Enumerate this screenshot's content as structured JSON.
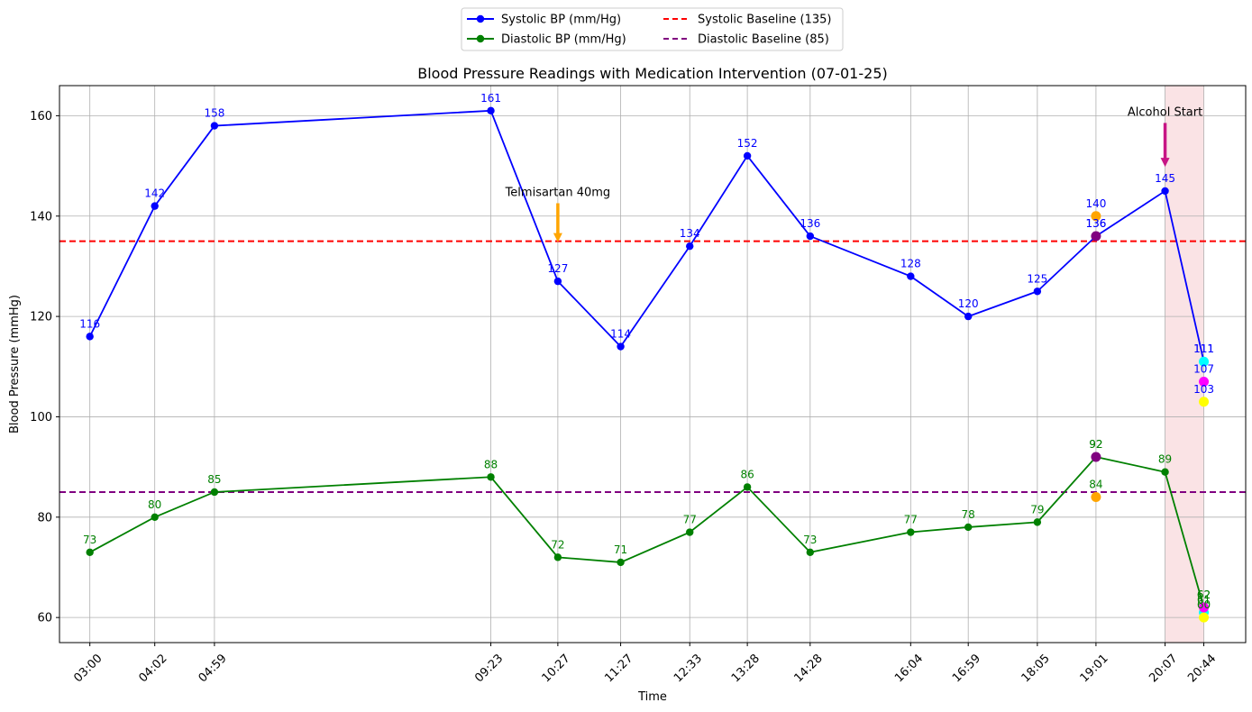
{
  "chart_data": {
    "type": "line",
    "title": "Blood Pressure Readings with Medication Intervention (07-01-25)",
    "xlabel": "Time",
    "ylabel": "Blood Pressure (mmHg)",
    "ylim": [
      55,
      166
    ],
    "yticks": [
      60,
      80,
      100,
      120,
      140,
      160
    ],
    "grid": true,
    "legend_position": "top-center",
    "x_tick_labels": [
      "03:00",
      "04:02",
      "04:59",
      "09:23",
      "10:27",
      "11:27",
      "12:33",
      "13:28",
      "14:28",
      "16:04",
      "16:59",
      "18:05",
      "19:01",
      "20:07",
      "20:44"
    ],
    "series": [
      {
        "name": "Systolic BP (mm/Hg)",
        "color": "#0000ff",
        "x": [
          "03:00",
          "04:02",
          "04:59",
          "09:23",
          "10:27",
          "11:27",
          "12:33",
          "13:28",
          "14:28",
          "16:04",
          "16:59",
          "18:05",
          "19:01",
          "20:07",
          "20:44"
        ],
        "values": [
          116,
          142,
          158,
          161,
          127,
          114,
          134,
          152,
          136,
          128,
          120,
          125,
          136,
          145,
          111
        ]
      },
      {
        "name": "Diastolic BP (mm/Hg)",
        "color": "#008000",
        "x": [
          "03:00",
          "04:02",
          "04:59",
          "09:23",
          "10:27",
          "11:27",
          "12:33",
          "13:28",
          "14:28",
          "16:04",
          "16:59",
          "18:05",
          "19:01",
          "20:07",
          "20:44"
        ],
        "values": [
          73,
          80,
          85,
          88,
          72,
          71,
          77,
          86,
          73,
          77,
          78,
          79,
          92,
          89,
          62
        ]
      }
    ],
    "baselines": [
      {
        "name": "Systolic Baseline (135)",
        "value": 135,
        "color": "#ff0000"
      },
      {
        "name": "Diastolic Baseline (85)",
        "value": 85,
        "color": "#800080"
      }
    ],
    "extra_readings": [
      {
        "time": "19:01",
        "systolic": 140,
        "diastolic": 84,
        "color": "#ffa500"
      },
      {
        "time": "19:01",
        "systolic": 136,
        "diastolic": 92,
        "color": "#800080"
      },
      {
        "time": "20:44",
        "systolic": 111,
        "diastolic": 61,
        "color": "#00ffff"
      },
      {
        "time": "20:44",
        "systolic": 107,
        "diastolic": 62,
        "color": "#ff00ff"
      },
      {
        "time": "20:44",
        "systolic": 103,
        "diastolic": 60,
        "color": "#ffff00"
      }
    ],
    "shaded_region": {
      "from": "20:07",
      "to": "20:44",
      "color": "#f4c2c6"
    },
    "annotations": [
      {
        "text": "Telmisartan 40mg",
        "time": "10:27",
        "arrow_color": "#ffa500",
        "text_y": 144,
        "arrow_from": 144,
        "arrow_to": 135
      },
      {
        "text": "Alcohol Start",
        "time": "20:07",
        "arrow_color": "#c71585",
        "text_y": 160,
        "arrow_from": 160,
        "arrow_to": 150
      }
    ]
  }
}
